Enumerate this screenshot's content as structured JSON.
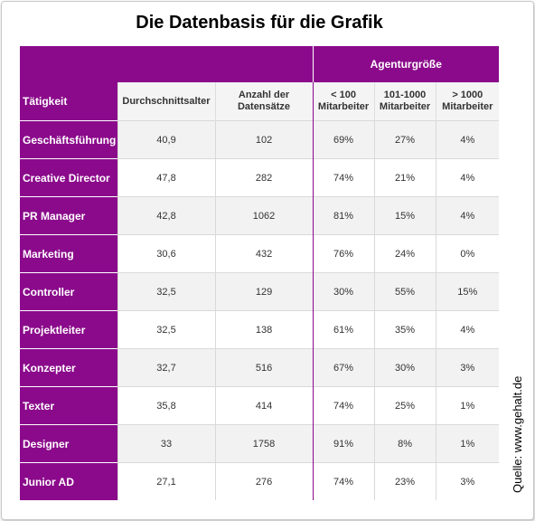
{
  "title": "Die Datenbasis für die Grafik",
  "group_header": "Agenturgröße",
  "columns": {
    "activity": "Tätigkeit",
    "avg_age": "Durchschnittsalter",
    "count_line1": "Anzahl der",
    "count_line2": "Datensätze",
    "small_line1": "< 100",
    "small_line2": "Mitarbeiter",
    "medium_line1": "101-1000",
    "medium_line2": "Mitarbeiter",
    "large_line1": "> 1000",
    "large_line2": "Mitarbeiter"
  },
  "rows": [
    {
      "activity": "Geschäftsführung",
      "avg_age": "40,9",
      "count": "102",
      "small": "69%",
      "medium": "27%",
      "large": "4%"
    },
    {
      "activity": "Creative Director",
      "avg_age": "47,8",
      "count": "282",
      "small": "74%",
      "medium": "21%",
      "large": "4%"
    },
    {
      "activity": "PR Manager",
      "avg_age": "42,8",
      "count": "1062",
      "small": "81%",
      "medium": "15%",
      "large": "4%"
    },
    {
      "activity": "Marketing",
      "avg_age": "30,6",
      "count": "432",
      "small": "76%",
      "medium": "24%",
      "large": "0%"
    },
    {
      "activity": "Controller",
      "avg_age": "32,5",
      "count": "129",
      "small": "30%",
      "medium": "55%",
      "large": "15%"
    },
    {
      "activity": "Projektleiter",
      "avg_age": "32,5",
      "count": "138",
      "small": "61%",
      "medium": "35%",
      "large": "4%"
    },
    {
      "activity": "Konzepter",
      "avg_age": "32,7",
      "count": "516",
      "small": "67%",
      "medium": "30%",
      "large": "3%"
    },
    {
      "activity": "Texter",
      "avg_age": "35,8",
      "count": "414",
      "small": "74%",
      "medium": "25%",
      "large": "1%"
    },
    {
      "activity": "Designer",
      "avg_age": "33",
      "count": "1758",
      "small": "91%",
      "medium": "8%",
      "large": "1%"
    },
    {
      "activity": "Junior AD",
      "avg_age": "27,1",
      "count": "276",
      "small": "74%",
      "medium": "23%",
      "large": "3%"
    }
  ],
  "source": "Quelle: www.gehalt.de",
  "colors": {
    "accent": "#8b0a8b",
    "row_alt": "#f2f2f2"
  }
}
